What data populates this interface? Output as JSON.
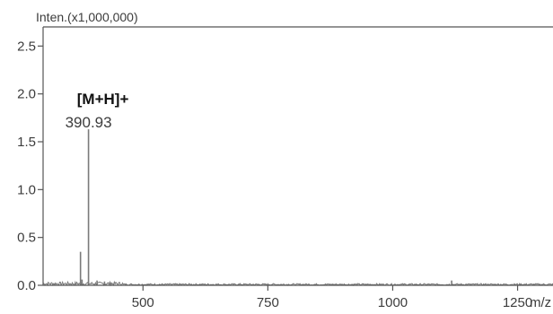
{
  "chart_data": {
    "type": "line",
    "subtype": "mass-spectrum",
    "ylabel": "Inten.(x1,000,000)",
    "xlabel": "m/z",
    "xlim": [
      300,
      1400
    ],
    "ylim": [
      0,
      2.7
    ],
    "x_ticks": [
      500,
      750,
      1000,
      1250
    ],
    "y_ticks": [
      0.0,
      0.5,
      1.0,
      1.5,
      2.0,
      2.5
    ],
    "x_tick_labels": [
      "500",
      "750",
      "1000",
      "1250"
    ],
    "y_tick_labels": [
      "0.0",
      "0.5",
      "1.0",
      "1.5",
      "2.0",
      "2.5"
    ],
    "grid": false,
    "line_color": "#7a7a7a",
    "peaks": [
      {
        "mz": 390.93,
        "intensity": 1.63,
        "label": "390.93"
      },
      {
        "mz": 374.9,
        "intensity": 0.35
      },
      {
        "mz": 378.0,
        "intensity": 0.06
      },
      {
        "mz": 408.0,
        "intensity": 0.05
      },
      {
        "mz": 423.0,
        "intensity": 0.04
      },
      {
        "mz": 436.0,
        "intensity": 0.03
      },
      {
        "mz": 1118.0,
        "intensity": 0.05
      }
    ],
    "annotations": [
      {
        "text": "[M+H]+",
        "mz": 390.93
      }
    ]
  }
}
